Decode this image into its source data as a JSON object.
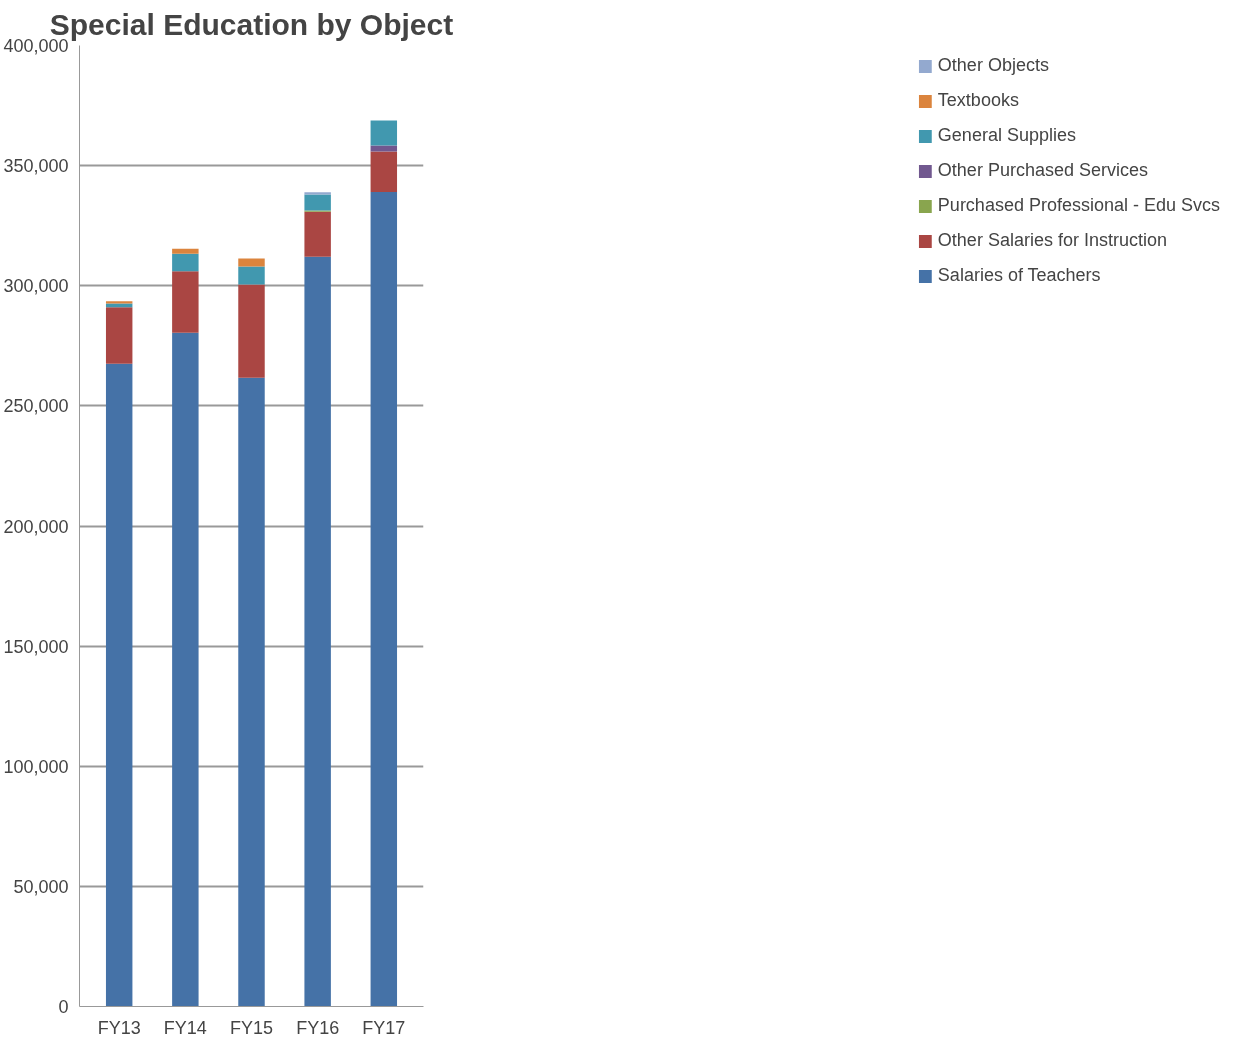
{
  "chart_data": {
    "type": "bar",
    "title": "Special Education by Object",
    "stacked": true,
    "categories": [
      "FY13",
      "FY14",
      "FY15",
      "FY16",
      "FY17"
    ],
    "series": [
      {
        "name": "Salaries of Teachers",
        "color": "#4572a7",
        "values": [
          267500,
          280400,
          261700,
          312100,
          339000
        ]
      },
      {
        "name": "Other Salaries for Instruction",
        "color": "#aa4643",
        "values": [
          23600,
          25600,
          38800,
          18700,
          16900
        ]
      },
      {
        "name": "Purchased Professional - Edu Svcs",
        "color": "#89a54e",
        "values": [
          null,
          null,
          null,
          500,
          null
        ]
      },
      {
        "name": "Other Purchased Services",
        "color": "#71588f",
        "values": [
          null,
          null,
          null,
          null,
          2500
        ]
      },
      {
        "name": "General Supplies",
        "color": "#4198af",
        "values": [
          1500,
          7300,
          7500,
          6700,
          10400
        ]
      },
      {
        "name": "Textbooks",
        "color": "#db843d",
        "values": [
          1000,
          2100,
          3300,
          null,
          null
        ]
      },
      {
        "name": "Other Objects",
        "color": "#93a9cf",
        "values": [
          null,
          null,
          null,
          900,
          null
        ]
      }
    ],
    "ylim": [
      0,
      400000
    ],
    "yticks": [
      {
        "value": 0,
        "label": "0"
      },
      {
        "value": 50000,
        "label": "50,000"
      },
      {
        "value": 100000,
        "label": "100,000"
      },
      {
        "value": 150000,
        "label": "150,000"
      },
      {
        "value": 200000,
        "label": "200,000"
      },
      {
        "value": 250000,
        "label": "250,000"
      },
      {
        "value": 300000,
        "label": "300,000"
      },
      {
        "value": 350000,
        "label": "350,000"
      },
      {
        "value": 400000,
        "label": "400,000"
      }
    ],
    "grid": "y",
    "legend": "right"
  }
}
